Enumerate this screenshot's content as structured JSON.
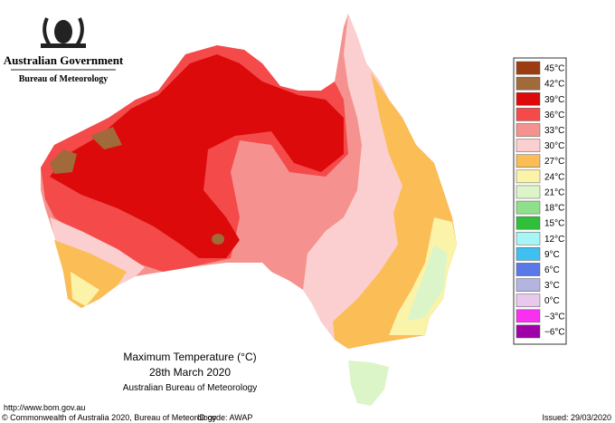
{
  "header": {
    "government": "Australian Government",
    "agency": "Bureau of Meteorology"
  },
  "legend": {
    "items": [
      {
        "label": "45°C",
        "color": "#9c3c10"
      },
      {
        "label": "42°C",
        "color": "#a06a3a"
      },
      {
        "label": "39°C",
        "color": "#dc0a0a"
      },
      {
        "label": "36°C",
        "color": "#f44a4a"
      },
      {
        "label": "33°C",
        "color": "#f5928f"
      },
      {
        "label": "30°C",
        "color": "#fbcfcf"
      },
      {
        "label": "27°C",
        "color": "#fbbd55"
      },
      {
        "label": "24°C",
        "color": "#fbf3a8"
      },
      {
        "label": "21°C",
        "color": "#dcf5c8"
      },
      {
        "label": "18°C",
        "color": "#8fe08a"
      },
      {
        "label": "15°C",
        "color": "#2fbf3a"
      },
      {
        "label": "12°C",
        "color": "#a8f5f5"
      },
      {
        "label": "9°C",
        "color": "#40c0f0"
      },
      {
        "label": "6°C",
        "color": "#5a78e8"
      },
      {
        "label": "3°C",
        "color": "#b4b4e0"
      },
      {
        "label": "0°C",
        "color": "#e8c8ec"
      },
      {
        "label": "−3°C",
        "color": "#f830f0"
      },
      {
        "label": "−6°C",
        "color": "#a000a8"
      }
    ]
  },
  "map_title": {
    "line1": "Maximum Temperature (°C)",
    "line2": "28th March 2020",
    "line3": "Australian Bureau of Meteorology"
  },
  "footer": {
    "url": "http://www.bom.gov.au",
    "copyright": "© Commonwealth of Australia 2020, Bureau of Meteorology",
    "id_code": "ID code: AWAP",
    "issued": "Issued: 29/03/2020"
  }
}
